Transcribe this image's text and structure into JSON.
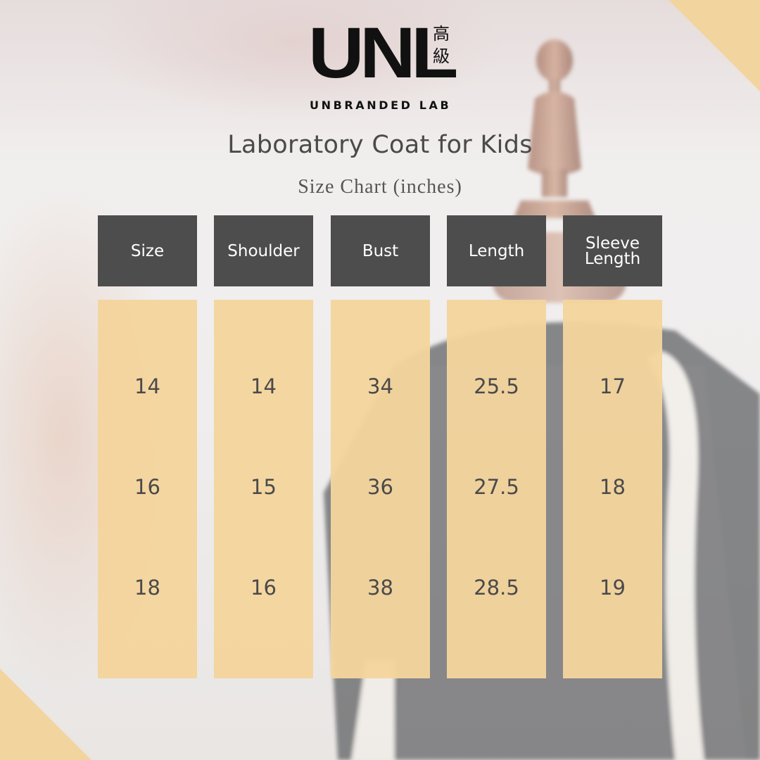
{
  "logo": {
    "wordmark": "UNL",
    "cjk": "高\n級",
    "subtitle": "UNBRANDED LAB"
  },
  "title": "Laboratory Coat for Kids",
  "subtitle": "Size Chart (inches)",
  "table": {
    "headers": [
      "Size",
      "Shoulder",
      "Bust",
      "Length",
      "Sleeve\nLength"
    ],
    "rows": [
      [
        "14",
        "14",
        "34",
        "25.5",
        "17"
      ],
      [
        "16",
        "15",
        "36",
        "27.5",
        "18"
      ],
      [
        "18",
        "16",
        "38",
        "28.5",
        "19"
      ]
    ]
  },
  "colors": {
    "accent": "#f2d59e",
    "header_bg": "#4d4d4d",
    "cell_bg": "#f4d49d",
    "text": "#4a4a4a"
  }
}
